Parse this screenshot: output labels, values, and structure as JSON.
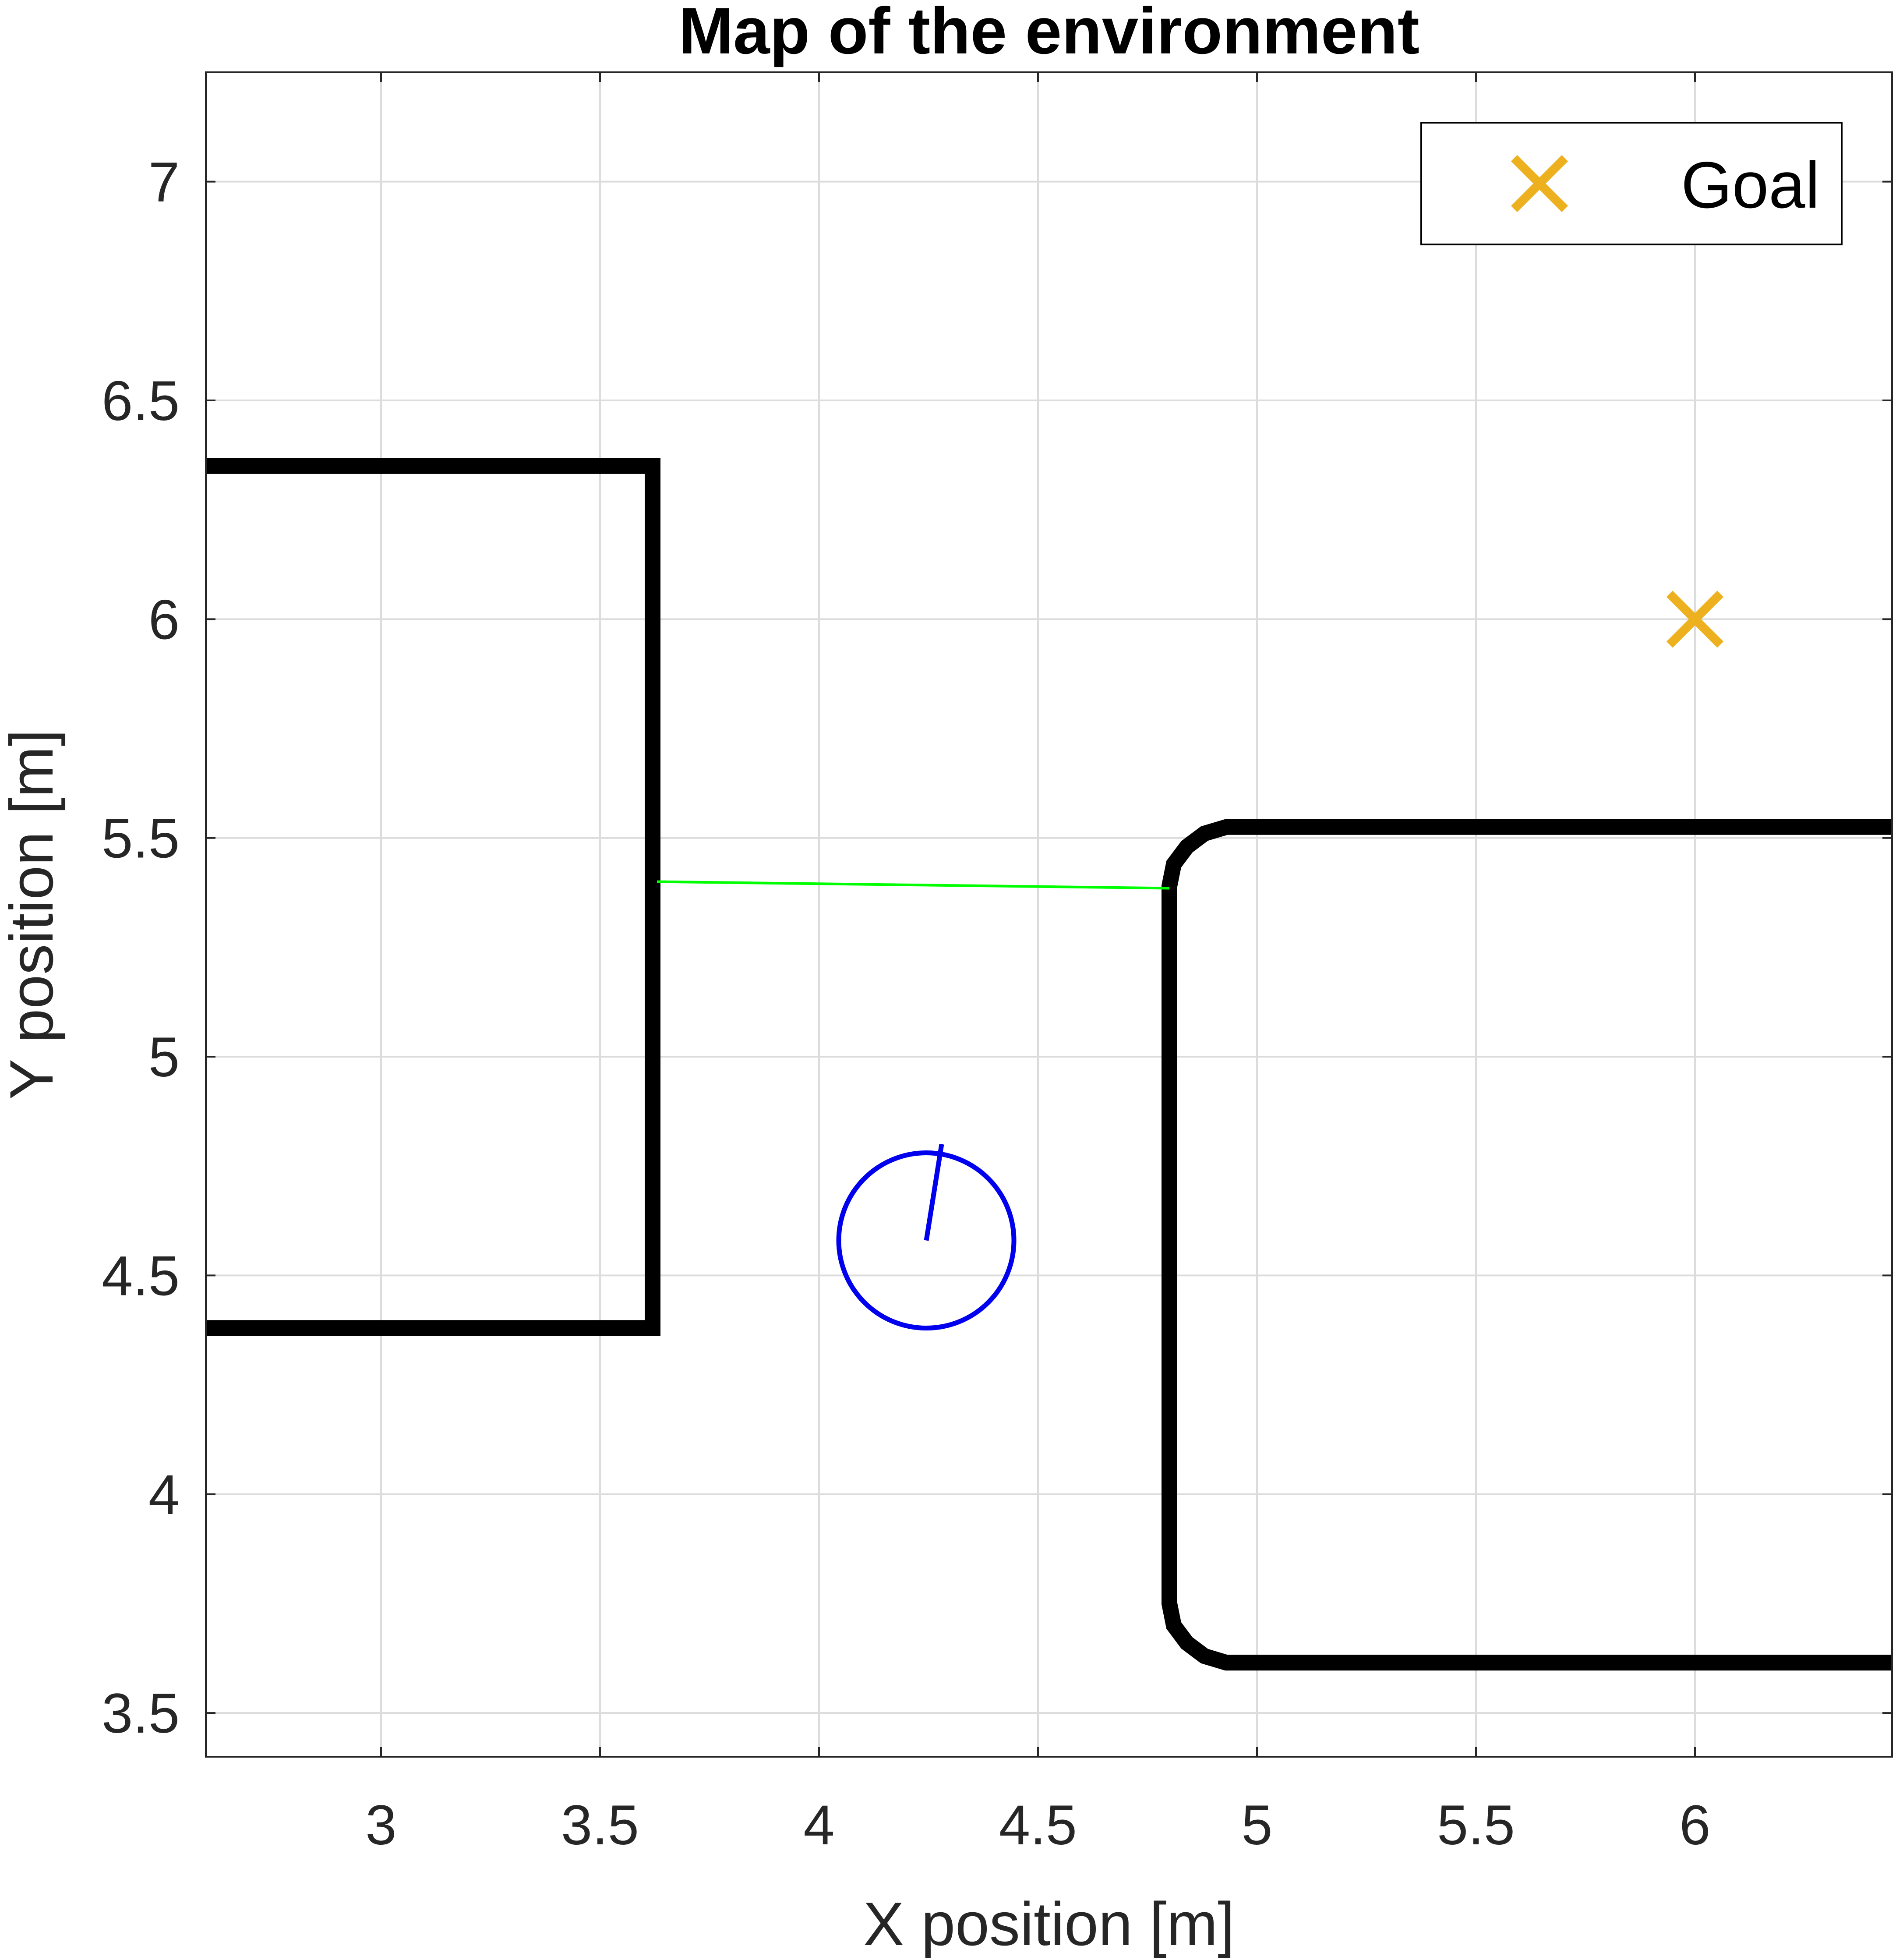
{
  "chart_data": {
    "type": "line",
    "title": "Map of the environment",
    "xlabel": "X position [m]",
    "ylabel": "Y position [m]",
    "xlim": [
      2.6,
      6.45
    ],
    "ylim": [
      3.4,
      7.25
    ],
    "xticks": [
      "3",
      "3.5",
      "4",
      "4.5",
      "5",
      "5.5",
      "6"
    ],
    "yticks": [
      "3.5",
      "4",
      "4.5",
      "5",
      "5.5",
      "6",
      "6.5",
      "7"
    ],
    "grid": true,
    "legend": {
      "position": "top-right",
      "entries": [
        "Goal"
      ]
    },
    "series": [
      {
        "kind": "obstacle",
        "color": "#000000",
        "points": [
          [
            2.6,
            6.35
          ],
          [
            3.62,
            6.35
          ],
          [
            3.62,
            4.38
          ],
          [
            2.6,
            4.38
          ]
        ]
      },
      {
        "kind": "obstacle",
        "color": "#000000",
        "points": [
          [
            6.45,
            5.525
          ],
          [
            4.93,
            5.525
          ],
          [
            4.88,
            5.51
          ],
          [
            4.84,
            5.48
          ],
          [
            4.81,
            5.44
          ],
          [
            4.8,
            5.39
          ],
          [
            4.8,
            3.75
          ],
          [
            4.81,
            3.7
          ],
          [
            4.84,
            3.66
          ],
          [
            4.88,
            3.63
          ],
          [
            4.93,
            3.615
          ],
          [
            6.45,
            3.615
          ]
        ]
      },
      {
        "kind": "path",
        "color": "#00ff00",
        "points": [
          [
            3.63,
            5.4
          ],
          [
            4.8,
            5.385
          ]
        ]
      },
      {
        "name": "Goal",
        "kind": "marker",
        "marker": "x",
        "color": "#edb120",
        "points": [
          [
            6.0,
            6.0
          ]
        ]
      },
      {
        "kind": "robot",
        "color": "#0000ee",
        "center": [
          4.245,
          4.58
        ],
        "radius": 0.2,
        "heading_tip": [
          4.28,
          4.8
        ]
      }
    ]
  }
}
